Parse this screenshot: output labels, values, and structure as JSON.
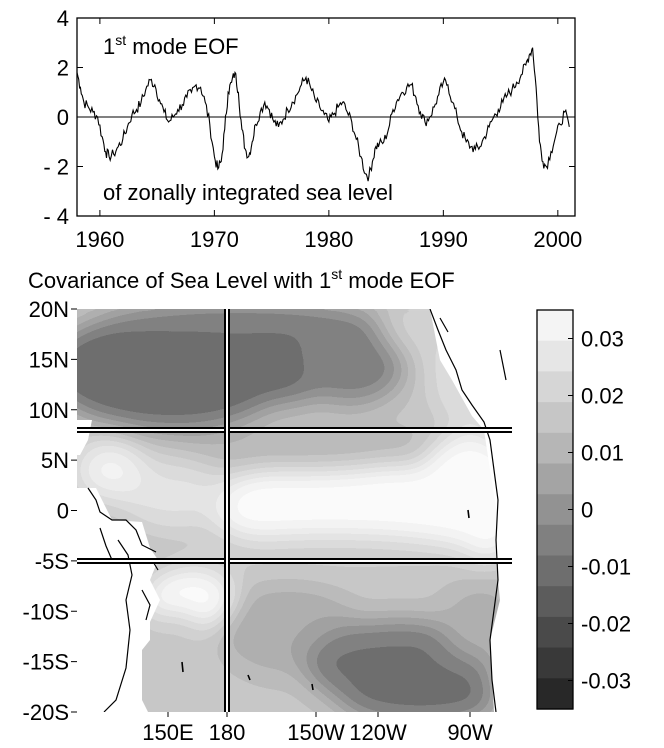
{
  "chart_data": [
    {
      "type": "line",
      "annotation_top": {
        "base": "1",
        "sup": "st",
        "rest": " mode EOF"
      },
      "annotation_bottom": "of zonally integrated sea level",
      "xlim": [
        1958,
        2001.5
      ],
      "ylim": [
        -4,
        4
      ],
      "xticks": [
        1960,
        1970,
        1980,
        1990,
        2000
      ],
      "yticks": [
        4,
        2,
        0,
        -2,
        -4
      ],
      "ytick_labels": [
        "4",
        "2",
        "0",
        "- 2",
        "- 4"
      ],
      "zero_line": true,
      "series": [
        {
          "x": [
            1958.0,
            1958.3,
            1958.6,
            1959.0,
            1959.4,
            1959.8,
            1960.2,
            1960.5,
            1960.8,
            1961.2,
            1961.6,
            1962.0,
            1962.4,
            1962.8,
            1963.2,
            1963.6,
            1964.0,
            1964.4,
            1964.8,
            1965.2,
            1965.6,
            1966.0,
            1966.4,
            1966.8,
            1967.2,
            1967.6,
            1968.0,
            1968.4,
            1968.8,
            1969.2,
            1969.6,
            1970.0,
            1970.3,
            1970.6,
            1970.9,
            1971.2,
            1971.5,
            1971.8,
            1972.1,
            1972.4,
            1972.7,
            1973.0,
            1973.3,
            1973.6,
            1974.0,
            1974.4,
            1974.8,
            1975.2,
            1975.6,
            1976.0,
            1976.4,
            1976.8,
            1977.2,
            1977.6,
            1978.0,
            1978.4,
            1978.8,
            1979.2,
            1979.6,
            1980.0,
            1980.4,
            1980.8,
            1981.2,
            1981.6,
            1982.0,
            1982.4,
            1982.8,
            1983.2,
            1983.5,
            1983.8,
            1984.1,
            1984.4,
            1984.8,
            1985.2,
            1985.6,
            1986.0,
            1986.4,
            1986.8,
            1987.2,
            1987.6,
            1988.0,
            1988.4,
            1988.8,
            1989.2,
            1989.6,
            1990.0,
            1990.4,
            1990.8,
            1991.2,
            1991.6,
            1992.0,
            1992.4,
            1992.8,
            1993.2,
            1993.6,
            1994.0,
            1994.4,
            1994.8,
            1995.2,
            1995.6,
            1996.0,
            1996.4,
            1996.8,
            1997.2,
            1997.5,
            1997.8,
            1998.1,
            1998.4,
            1998.7,
            1999.0,
            1999.4,
            1999.8,
            2000.2,
            2000.6,
            2001.0
          ],
          "y": [
            1.8,
            1.2,
            0.6,
            0.4,
            0.2,
            0.0,
            -0.8,
            -1.4,
            -1.6,
            -1.5,
            -1.2,
            -0.9,
            -0.4,
            0.1,
            0.3,
            0.6,
            1.1,
            1.5,
            1.3,
            0.7,
            0.2,
            -0.2,
            0.0,
            0.3,
            0.5,
            0.8,
            1.0,
            1.3,
            1.2,
            0.6,
            -0.3,
            -1.6,
            -2.1,
            -1.8,
            -0.5,
            1.0,
            1.4,
            1.8,
            1.0,
            -0.5,
            -1.3,
            -1.6,
            -1.0,
            -0.3,
            0.2,
            0.6,
            0.3,
            -0.2,
            -0.4,
            -0.1,
            0.3,
            0.6,
            0.9,
            1.3,
            1.6,
            1.2,
            0.7,
            0.4,
            0.1,
            -0.2,
            0.1,
            0.4,
            0.6,
            0.2,
            -0.2,
            -0.9,
            -1.6,
            -2.3,
            -2.4,
            -1.8,
            -1.2,
            -1.1,
            -1.0,
            -0.5,
            0.3,
            0.7,
            1.0,
            1.2,
            1.3,
            0.8,
            0.2,
            -0.2,
            0.0,
            0.4,
            0.9,
            1.4,
            1.3,
            0.6,
            0.0,
            -0.6,
            -1.0,
            -1.2,
            -1.3,
            -1.2,
            -0.8,
            -0.4,
            0.0,
            0.3,
            0.6,
            0.9,
            1.1,
            1.4,
            1.7,
            2.1,
            2.5,
            2.8,
            1.2,
            -1.0,
            -1.8,
            -2.0,
            -1.4,
            -0.8,
            -0.3,
            0.2,
            -0.4
          ]
        }
      ]
    },
    {
      "type": "heatmap",
      "title": {
        "prefix": "Covariance of Sea Level with 1",
        "sup": "st",
        "suffix": " mode EOF"
      },
      "x_tick_labels": [
        "150E",
        "180",
        "150W",
        "120W",
        "90W"
      ],
      "y_tick_labels": [
        "20N",
        "15N",
        "10N",
        "5N",
        "0",
        "-5S",
        "-10S",
        "-15S",
        "-20S"
      ],
      "section_lines_lat": [
        "8N",
        "-5S"
      ],
      "section_line_lon": "180",
      "colorbar": {
        "range": [
          -0.035,
          0.035
        ],
        "tick_labels": [
          "0.03",
          "0.02",
          "0.01",
          "0",
          "-0.01",
          "-0.02",
          "-0.03"
        ],
        "levels": [
          "#f4f4f4",
          "#e6e6e6",
          "#d6d6d6",
          "#c6c6c6",
          "#b6b6b6",
          "#a4a4a4",
          "#929292",
          "#808080",
          "#6e6e6e",
          "#5c5c5c",
          "#4a4a4a",
          "#393939",
          "#282828"
        ]
      },
      "field_highlights": [
        {
          "region": "north-west Pacific 10N-20N",
          "value": -0.03
        },
        {
          "region": "equatorial central-east Pacific",
          "value": 0.03
        },
        {
          "region": "south-west Pacific near 10S",
          "value": 0.025
        },
        {
          "region": "south-east Pacific near 15S-20S",
          "value": -0.015
        }
      ]
    }
  ]
}
